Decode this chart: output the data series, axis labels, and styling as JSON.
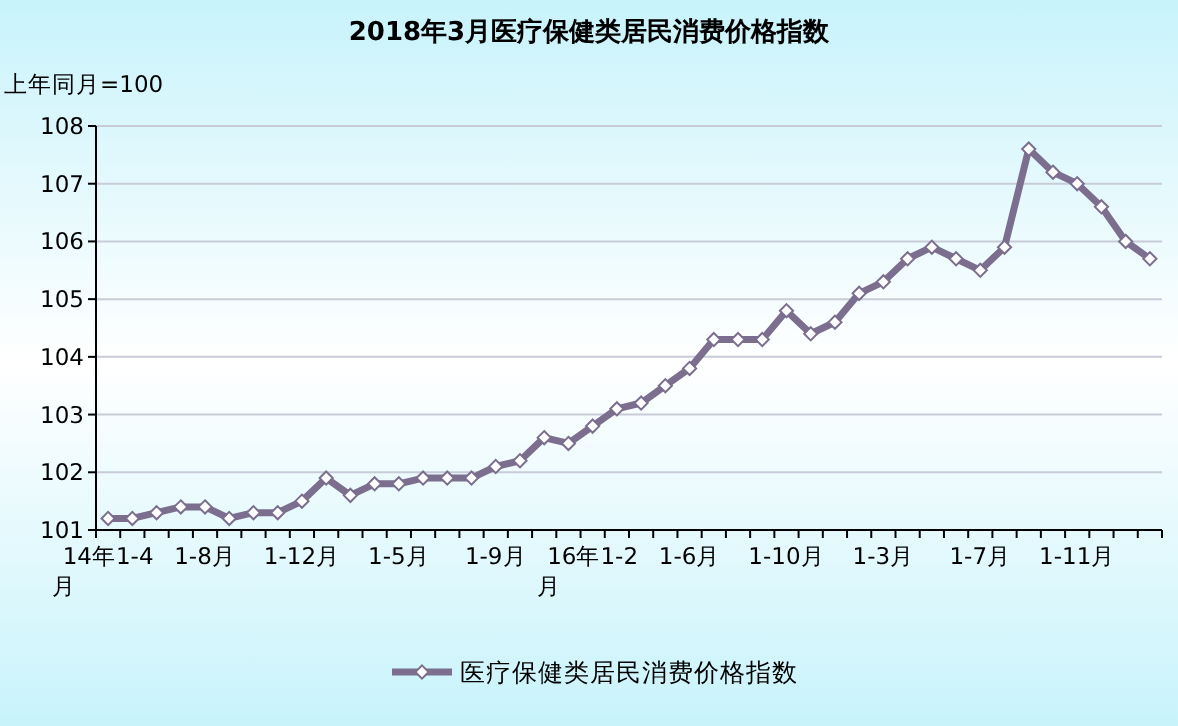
{
  "chart_data": {
    "type": "line",
    "title": "2018年3月医疗保健类居民消费价格指数",
    "ylabel": "上年同月=100",
    "categories": [
      "14年1-4月",
      null,
      null,
      null,
      "1-8月",
      null,
      null,
      null,
      "1-12月",
      null,
      null,
      null,
      "1-5月",
      null,
      null,
      null,
      "1-9月",
      null,
      null,
      null,
      "16年1-2月",
      null,
      null,
      null,
      "1-6月",
      null,
      null,
      null,
      "1-10月",
      null,
      null,
      null,
      "1-3月",
      null,
      null,
      null,
      "1-7月",
      null,
      null,
      null,
      "1-11月",
      null,
      null,
      null
    ],
    "series": [
      {
        "name": "医疗保健类居民消费价格指数",
        "color": "#7b6e8e",
        "values": [
          101.2,
          101.2,
          101.3,
          101.4,
          101.4,
          101.2,
          101.3,
          101.3,
          101.5,
          101.9,
          101.6,
          101.8,
          101.8,
          101.9,
          101.9,
          101.9,
          102.1,
          102.2,
          102.6,
          102.5,
          102.8,
          103.1,
          103.2,
          103.5,
          103.8,
          104.3,
          104.3,
          104.3,
          104.8,
          104.4,
          104.6,
          105.1,
          105.3,
          105.7,
          105.9,
          105.7,
          105.5,
          105.9,
          107.6,
          107.2,
          107.0,
          106.6,
          106.0,
          105.7
        ]
      }
    ],
    "ylim": [
      101,
      108
    ],
    "yticks": [
      101,
      102,
      103,
      104,
      105,
      106,
      107,
      108
    ],
    "grid": "y",
    "legend": "bottom",
    "marker": "diamond",
    "line_style": "solid"
  }
}
